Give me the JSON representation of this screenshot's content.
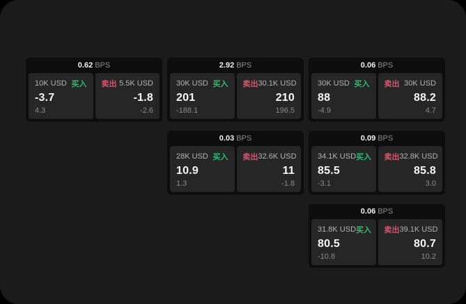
{
  "labels": {
    "buy": "买入",
    "sell": "卖出",
    "bps_unit": "BPS"
  },
  "colors": {
    "buy": "#35b871",
    "sell": "#d5566d",
    "window_background": "#1b1b1b",
    "backdrop": "#000000",
    "card_background": "#0d0d0d",
    "panel_background": "#262626"
  },
  "cards": [
    {
      "bps": "0.62",
      "col": 1,
      "row": 1,
      "buy": {
        "amount": "10K USD",
        "value": "-3.7",
        "delta": "4.3"
      },
      "sell": {
        "amount": "5.5K USD",
        "value": "-1.8",
        "delta": "-2.6"
      }
    },
    {
      "bps": "2.92",
      "col": 2,
      "row": 1,
      "buy": {
        "amount": "30K USD",
        "value": "201",
        "delta": "-188.1"
      },
      "sell": {
        "amount": "30.1K USD",
        "value": "210",
        "delta": "196.5"
      }
    },
    {
      "bps": "0.06",
      "col": 3,
      "row": 1,
      "buy": {
        "amount": "30K USD",
        "value": "88",
        "delta": "-4.9"
      },
      "sell": {
        "amount": "30K USD",
        "value": "88.2",
        "delta": "4.7"
      }
    },
    {
      "bps": "0.03",
      "col": 2,
      "row": 2,
      "buy": {
        "amount": "28K USD",
        "value": "10.9",
        "delta": "1.3"
      },
      "sell": {
        "amount": "32.6K USD",
        "value": "11",
        "delta": "-1.8"
      }
    },
    {
      "bps": "0.09",
      "col": 3,
      "row": 2,
      "buy": {
        "amount": "34.1K USD",
        "value": "85.5",
        "delta": "-3.1"
      },
      "sell": {
        "amount": "32.8K USD",
        "value": "85.8",
        "delta": "3.0"
      }
    },
    {
      "bps": "0.06",
      "col": 3,
      "row": 3,
      "buy": {
        "amount": "31.8K USD",
        "value": "80.5",
        "delta": "-10.8"
      },
      "sell": {
        "amount": "39.1K USD",
        "value": "80.7",
        "delta": "10.2"
      }
    }
  ]
}
